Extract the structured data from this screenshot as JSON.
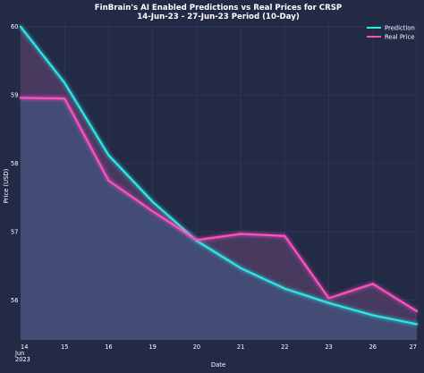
{
  "chart_data": {
    "type": "line",
    "title": "FinBrain's AI Enabled Predictions vs Real Prices for CRSP",
    "subtitle": "14-Jun-23 - 27-Jun-23 Period (10-Day)",
    "xlabel": "Date",
    "ylabel": "Price (USD)",
    "categories": [
      "14",
      "15",
      "16",
      "19",
      "20",
      "21",
      "22",
      "23",
      "26",
      "27"
    ],
    "first_tick_extra": [
      "Jun",
      "2023"
    ],
    "series": [
      {
        "name": "Prediction",
        "color": "#2ee6e6",
        "values": [
          60.0,
          59.18,
          58.12,
          57.44,
          56.87,
          56.47,
          56.17,
          55.96,
          55.78,
          55.65
        ]
      },
      {
        "name": "Real Price",
        "color": "#ff4fc2",
        "values": [
          58.96,
          58.95,
          57.75,
          57.3,
          56.88,
          56.97,
          56.94,
          56.03,
          56.24,
          55.84
        ]
      }
    ],
    "yticks": [
      56,
      57,
      58,
      59,
      60
    ],
    "ylim": [
      55.42,
      60.05
    ],
    "grid": true,
    "legend_position": "top-right"
  }
}
